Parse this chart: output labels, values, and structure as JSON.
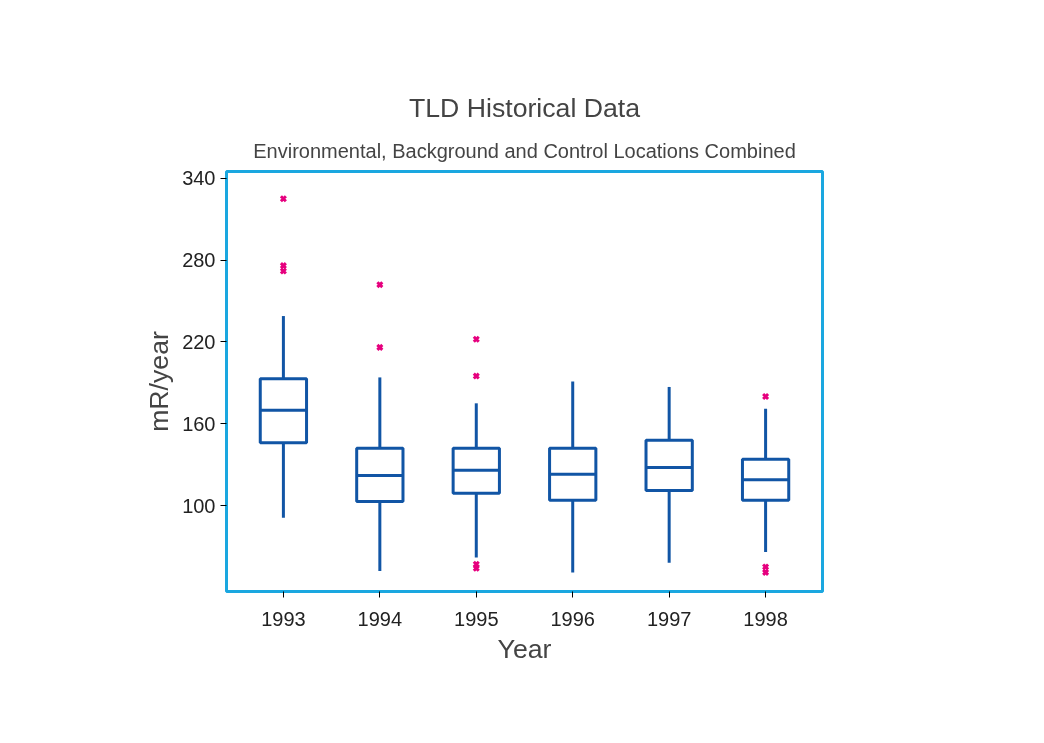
{
  "chart_data": {
    "type": "box",
    "title": "TLD Historical Data",
    "subtitle": "Environmental, Background and Control Locations Combined",
    "xlabel": "Year",
    "ylabel": "mR/year",
    "categories": [
      "1993",
      "1994",
      "1995",
      "1996",
      "1997",
      "1998"
    ],
    "ylim": [
      37,
      345
    ],
    "yticks": [
      100,
      160,
      220,
      280,
      340
    ],
    "grid": false,
    "marker": "cross",
    "series": [
      {
        "color": "#1155a5",
        "boxes": [
          {
            "low": 91,
            "q1": 146,
            "median": 170,
            "q3": 193,
            "high": 239,
            "outliers": [
              325,
              276,
              272
            ]
          },
          {
            "low": 52,
            "q1": 103,
            "median": 122,
            "q3": 142,
            "high": 194,
            "outliers": [
              262,
              216
            ]
          },
          {
            "low": 62,
            "q1": 109,
            "median": 126,
            "q3": 142,
            "high": 175,
            "outliers": [
              222,
              195,
              57,
              54
            ]
          },
          {
            "low": 51,
            "q1": 104,
            "median": 123,
            "q3": 142,
            "high": 191
          },
          {
            "low": 58,
            "q1": 111,
            "median": 128,
            "q3": 148,
            "high": 187
          },
          {
            "low": 66,
            "q1": 104,
            "median": 119,
            "q3": 134,
            "high": 171,
            "outliers": [
              180,
              55,
              51
            ]
          }
        ]
      }
    ]
  }
}
